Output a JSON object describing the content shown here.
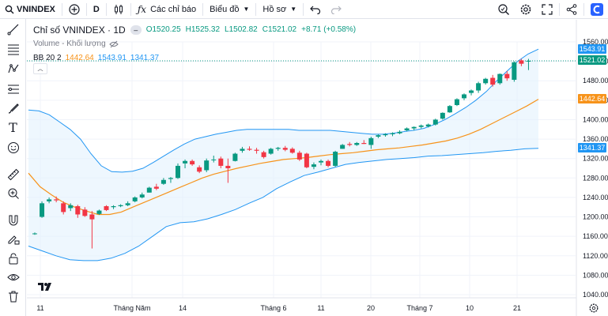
{
  "topbar": {
    "symbol": "VNINDEX",
    "interval": "D",
    "indicators_label": "Các chỉ báo",
    "chart_type_label": "Biểu đồ",
    "profile_label": "Hồ sơ"
  },
  "legend": {
    "name": "Chỉ số VNINDEX · 1D",
    "open": "O1520.25",
    "high": "H1525.32",
    "low": "L1502.82",
    "close": "C1521.02",
    "change": "+8.71 (+0.58%)",
    "volume_label": "Volume - Khối lượng",
    "bb_label": "BB 20 2",
    "bb_mid": "1442.64",
    "bb_upper": "1543.91",
    "bb_lower": "1341.37"
  },
  "price_axis": {
    "ticks": [
      "1560.00",
      "1520.00",
      "1480.00",
      "1440.00",
      "1400.00",
      "1360.00",
      "1320.00",
      "1280.00",
      "1240.00",
      "1200.00",
      "1160.00",
      "1120.00",
      "1080.00",
      "1040.00"
    ],
    "tags": {
      "upper": "1543.91",
      "last": "1521.02",
      "mid": "1442.64",
      "lower": "1341.37"
    }
  },
  "time_axis": {
    "labels": [
      "11",
      "Tháng Năm",
      "14",
      "Tháng 6",
      "11",
      "20",
      "Tháng 7",
      "10",
      "21"
    ]
  },
  "colors": {
    "up": "#089981",
    "down": "#f23645",
    "bb_mid": "#f7931a",
    "bb_band": "#2196f3",
    "bb_fill": "#e3f2fd"
  },
  "chart_data": {
    "type": "candlestick",
    "title": "Chỉ số VNINDEX · 1D",
    "ylim": [
      1040,
      1560
    ],
    "candles": [
      {
        "o": 1165,
        "h": 1168,
        "l": 1163,
        "c": 1166
      },
      {
        "o": 1200,
        "h": 1232,
        "l": 1198,
        "c": 1228
      },
      {
        "o": 1232,
        "h": 1240,
        "l": 1228,
        "c": 1236
      },
      {
        "o": 1236,
        "h": 1242,
        "l": 1230,
        "c": 1234
      },
      {
        "o": 1228,
        "h": 1232,
        "l": 1205,
        "c": 1210
      },
      {
        "o": 1218,
        "h": 1228,
        "l": 1212,
        "c": 1224
      },
      {
        "o": 1222,
        "h": 1225,
        "l": 1198,
        "c": 1205
      },
      {
        "o": 1215,
        "h": 1220,
        "l": 1200,
        "c": 1202
      },
      {
        "o": 1205,
        "h": 1212,
        "l": 1135,
        "c": 1195
      },
      {
        "o": 1206,
        "h": 1215,
        "l": 1204,
        "c": 1213
      },
      {
        "o": 1222,
        "h": 1224,
        "l": 1212,
        "c": 1214
      },
      {
        "o": 1220,
        "h": 1224,
        "l": 1216,
        "c": 1222
      },
      {
        "o": 1222,
        "h": 1226,
        "l": 1220,
        "c": 1224
      },
      {
        "o": 1224,
        "h": 1232,
        "l": 1222,
        "c": 1228
      },
      {
        "o": 1232,
        "h": 1242,
        "l": 1230,
        "c": 1240
      },
      {
        "o": 1240,
        "h": 1250,
        "l": 1238,
        "c": 1246
      },
      {
        "o": 1250,
        "h": 1262,
        "l": 1250,
        "c": 1260
      },
      {
        "o": 1262,
        "h": 1268,
        "l": 1255,
        "c": 1258
      },
      {
        "o": 1268,
        "h": 1280,
        "l": 1266,
        "c": 1276
      },
      {
        "o": 1278,
        "h": 1282,
        "l": 1270,
        "c": 1280
      },
      {
        "o": 1280,
        "h": 1310,
        "l": 1278,
        "c": 1305
      },
      {
        "o": 1310,
        "h": 1318,
        "l": 1300,
        "c": 1315
      },
      {
        "o": 1315,
        "h": 1318,
        "l": 1305,
        "c": 1308
      },
      {
        "o": 1302,
        "h": 1306,
        "l": 1290,
        "c": 1293
      },
      {
        "o": 1296,
        "h": 1320,
        "l": 1292,
        "c": 1316
      },
      {
        "o": 1318,
        "h": 1326,
        "l": 1312,
        "c": 1318
      },
      {
        "o": 1320,
        "h": 1324,
        "l": 1300,
        "c": 1305
      },
      {
        "o": 1305,
        "h": 1320,
        "l": 1270,
        "c": 1300
      },
      {
        "o": 1315,
        "h": 1332,
        "l": 1314,
        "c": 1330
      },
      {
        "o": 1336,
        "h": 1344,
        "l": 1332,
        "c": 1340
      },
      {
        "o": 1340,
        "h": 1345,
        "l": 1336,
        "c": 1338
      },
      {
        "o": 1338,
        "h": 1342,
        "l": 1330,
        "c": 1336
      },
      {
        "o": 1333,
        "h": 1336,
        "l": 1320,
        "c": 1323
      },
      {
        "o": 1330,
        "h": 1342,
        "l": 1328,
        "c": 1340
      },
      {
        "o": 1340,
        "h": 1344,
        "l": 1336,
        "c": 1342
      },
      {
        "o": 1342,
        "h": 1346,
        "l": 1335,
        "c": 1338
      },
      {
        "o": 1340,
        "h": 1343,
        "l": 1330,
        "c": 1332
      },
      {
        "o": 1332,
        "h": 1336,
        "l": 1315,
        "c": 1318
      },
      {
        "o": 1330,
        "h": 1332,
        "l": 1300,
        "c": 1302
      },
      {
        "o": 1303,
        "h": 1312,
        "l": 1298,
        "c": 1308
      },
      {
        "o": 1312,
        "h": 1318,
        "l": 1306,
        "c": 1315
      },
      {
        "o": 1315,
        "h": 1318,
        "l": 1302,
        "c": 1305
      },
      {
        "o": 1305,
        "h": 1336,
        "l": 1303,
        "c": 1334
      },
      {
        "o": 1340,
        "h": 1350,
        "l": 1340,
        "c": 1348
      },
      {
        "o": 1350,
        "h": 1354,
        "l": 1345,
        "c": 1348
      },
      {
        "o": 1348,
        "h": 1354,
        "l": 1346,
        "c": 1352
      },
      {
        "o": 1352,
        "h": 1358,
        "l": 1350,
        "c": 1350
      },
      {
        "o": 1348,
        "h": 1365,
        "l": 1340,
        "c": 1362
      },
      {
        "o": 1365,
        "h": 1370,
        "l": 1362,
        "c": 1368
      },
      {
        "o": 1368,
        "h": 1372,
        "l": 1365,
        "c": 1370
      },
      {
        "o": 1370,
        "h": 1374,
        "l": 1366,
        "c": 1372
      },
      {
        "o": 1372,
        "h": 1378,
        "l": 1370,
        "c": 1375
      },
      {
        "o": 1378,
        "h": 1384,
        "l": 1376,
        "c": 1382
      },
      {
        "o": 1382,
        "h": 1386,
        "l": 1378,
        "c": 1385
      },
      {
        "o": 1385,
        "h": 1390,
        "l": 1382,
        "c": 1388
      },
      {
        "o": 1386,
        "h": 1392,
        "l": 1384,
        "c": 1390
      },
      {
        "o": 1390,
        "h": 1402,
        "l": 1388,
        "c": 1400
      },
      {
        "o": 1402,
        "h": 1415,
        "l": 1400,
        "c": 1414
      },
      {
        "o": 1415,
        "h": 1430,
        "l": 1414,
        "c": 1428
      },
      {
        "o": 1430,
        "h": 1444,
        "l": 1428,
        "c": 1442
      },
      {
        "o": 1444,
        "h": 1454,
        "l": 1440,
        "c": 1452
      },
      {
        "o": 1455,
        "h": 1462,
        "l": 1450,
        "c": 1460
      },
      {
        "o": 1460,
        "h": 1478,
        "l": 1455,
        "c": 1475
      },
      {
        "o": 1475,
        "h": 1486,
        "l": 1472,
        "c": 1484
      },
      {
        "o": 1486,
        "h": 1492,
        "l": 1468,
        "c": 1472
      },
      {
        "o": 1475,
        "h": 1495,
        "l": 1472,
        "c": 1494
      },
      {
        "o": 1494,
        "h": 1500,
        "l": 1480,
        "c": 1485
      },
      {
        "o": 1482,
        "h": 1520,
        "l": 1478,
        "c": 1518
      },
      {
        "o": 1522,
        "h": 1525,
        "l": 1510,
        "c": 1515
      },
      {
        "o": 1520,
        "h": 1525,
        "l": 1502,
        "c": 1521
      }
    ],
    "bb_upper": [
      1420,
      1418,
      1410,
      1395,
      1380,
      1360,
      1330,
      1305,
      1293,
      1292,
      1294,
      1300,
      1312,
      1325,
      1338,
      1350,
      1360,
      1365,
      1370,
      1374,
      1378,
      1380,
      1380,
      1380,
      1380,
      1380,
      1378,
      1378,
      1378,
      1378,
      1376,
      1374,
      1372,
      1370,
      1370,
      1372,
      1375,
      1378,
      1382,
      1390,
      1400,
      1412,
      1425,
      1440,
      1458,
      1480,
      1500,
      1520,
      1535,
      1545
    ],
    "bb_mid": [
      1290,
      1262,
      1245,
      1230,
      1220,
      1212,
      1205,
      1205,
      1210,
      1220,
      1230,
      1240,
      1250,
      1260,
      1270,
      1280,
      1288,
      1294,
      1300,
      1305,
      1310,
      1314,
      1318,
      1320,
      1322,
      1325,
      1328,
      1330,
      1332,
      1335,
      1338,
      1340,
      1342,
      1345,
      1348,
      1352,
      1356,
      1362,
      1370,
      1380,
      1392,
      1404,
      1416,
      1428,
      1442
    ],
    "bb_lower": [
      1140,
      1130,
      1120,
      1112,
      1110,
      1110,
      1115,
      1125,
      1140,
      1160,
      1180,
      1188,
      1190,
      1196,
      1205,
      1215,
      1228,
      1240,
      1258,
      1272,
      1285,
      1292,
      1300,
      1308,
      1312,
      1315,
      1318,
      1320,
      1322,
      1325,
      1326,
      1328,
      1330,
      1332,
      1335,
      1337,
      1340,
      1341
    ]
  }
}
